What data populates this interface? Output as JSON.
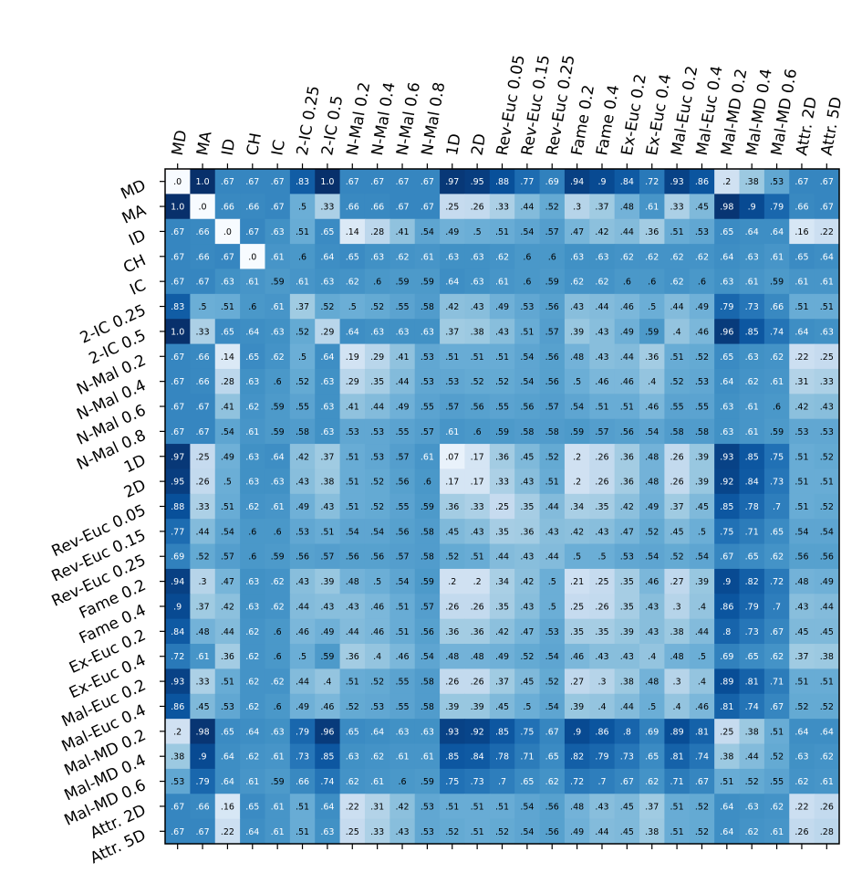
{
  "chart_data": {
    "type": "heatmap",
    "title": "",
    "xlabel": "",
    "ylabel": "",
    "colormap": "Blues",
    "value_range": [
      0,
      1
    ],
    "color_stops": [
      "#f7fbff",
      "#deebf7",
      "#c6dbef",
      "#9ecae1",
      "#6baed6",
      "#4292c6",
      "#2171b5",
      "#08519c",
      "#08306b"
    ],
    "labels": [
      "MD",
      "MA",
      "ID",
      "CH",
      "IC",
      "2-IC 0.25",
      "2-IC 0.5",
      "N-Mal 0.2",
      "N-Mal 0.4",
      "N-Mal 0.6",
      "N-Mal 0.8",
      "1D",
      "2D",
      "Rev-Euc 0.05",
      "Rev-Euc 0.15",
      "Rev-Euc 0.25",
      "Fame 0.2",
      "Fame 0.4",
      "Ex-Euc 0.2",
      "Ex-Euc 0.4",
      "Mal-Euc 0.2",
      "Mal-Euc 0.4",
      "Mal-MD 0.2",
      "Mal-MD 0.4",
      "Mal-MD 0.6",
      "Attr. 2D",
      "Attr. 5D"
    ],
    "values": [
      [
        0.0,
        1.0,
        0.67,
        0.67,
        0.67,
        0.83,
        1.0,
        0.67,
        0.67,
        0.67,
        0.67,
        0.97,
        0.95,
        0.88,
        0.77,
        0.69,
        0.94,
        0.9,
        0.84,
        0.72,
        0.93,
        0.86,
        0.2,
        0.38,
        0.53,
        0.67,
        0.67
      ],
      [
        1.0,
        0.0,
        0.66,
        0.66,
        0.67,
        0.5,
        0.33,
        0.66,
        0.66,
        0.67,
        0.67,
        0.25,
        0.26,
        0.33,
        0.44,
        0.52,
        0.3,
        0.37,
        0.48,
        0.61,
        0.33,
        0.45,
        0.98,
        0.9,
        0.79,
        0.66,
        0.67
      ],
      [
        0.67,
        0.66,
        0.0,
        0.67,
        0.63,
        0.51,
        0.65,
        0.14,
        0.28,
        0.41,
        0.54,
        0.49,
        0.5,
        0.51,
        0.54,
        0.57,
        0.47,
        0.42,
        0.44,
        0.36,
        0.51,
        0.53,
        0.65,
        0.64,
        0.64,
        0.16,
        0.22
      ],
      [
        0.67,
        0.66,
        0.67,
        0.0,
        0.61,
        0.6,
        0.64,
        0.65,
        0.63,
        0.62,
        0.61,
        0.63,
        0.63,
        0.62,
        0.6,
        0.6,
        0.63,
        0.63,
        0.62,
        0.62,
        0.62,
        0.62,
        0.64,
        0.63,
        0.61,
        0.65,
        0.64
      ],
      [
        0.67,
        0.67,
        0.63,
        0.61,
        0.59,
        0.61,
        0.63,
        0.62,
        0.6,
        0.59,
        0.59,
        0.64,
        0.63,
        0.61,
        0.6,
        0.59,
        0.62,
        0.62,
        0.6,
        0.6,
        0.62,
        0.6,
        0.63,
        0.61,
        0.59,
        0.61,
        0.61
      ],
      [
        0.83,
        0.5,
        0.51,
        0.6,
        0.61,
        0.37,
        0.52,
        0.5,
        0.52,
        0.55,
        0.58,
        0.42,
        0.43,
        0.49,
        0.53,
        0.56,
        0.43,
        0.44,
        0.46,
        0.5,
        0.44,
        0.49,
        0.79,
        0.73,
        0.66,
        0.51,
        0.51
      ],
      [
        1.0,
        0.33,
        0.65,
        0.64,
        0.63,
        0.52,
        0.29,
        0.64,
        0.63,
        0.63,
        0.63,
        0.37,
        0.38,
        0.43,
        0.51,
        0.57,
        0.39,
        0.43,
        0.49,
        0.59,
        0.4,
        0.46,
        0.96,
        0.85,
        0.74,
        0.64,
        0.63
      ],
      [
        0.67,
        0.66,
        0.14,
        0.65,
        0.62,
        0.5,
        0.64,
        0.19,
        0.29,
        0.41,
        0.53,
        0.51,
        0.51,
        0.51,
        0.54,
        0.56,
        0.48,
        0.43,
        0.44,
        0.36,
        0.51,
        0.52,
        0.65,
        0.63,
        0.62,
        0.22,
        0.25
      ],
      [
        0.67,
        0.66,
        0.28,
        0.63,
        0.6,
        0.52,
        0.63,
        0.29,
        0.35,
        0.44,
        0.53,
        0.53,
        0.52,
        0.52,
        0.54,
        0.56,
        0.5,
        0.46,
        0.46,
        0.4,
        0.52,
        0.53,
        0.64,
        0.62,
        0.61,
        0.31,
        0.33
      ],
      [
        0.67,
        0.67,
        0.41,
        0.62,
        0.59,
        0.55,
        0.63,
        0.41,
        0.44,
        0.49,
        0.55,
        0.57,
        0.56,
        0.55,
        0.56,
        0.57,
        0.54,
        0.51,
        0.51,
        0.46,
        0.55,
        0.55,
        0.63,
        0.61,
        0.6,
        0.42,
        0.43
      ],
      [
        0.67,
        0.67,
        0.54,
        0.61,
        0.59,
        0.58,
        0.63,
        0.53,
        0.53,
        0.55,
        0.57,
        0.61,
        0.6,
        0.59,
        0.58,
        0.58,
        0.59,
        0.57,
        0.56,
        0.54,
        0.58,
        0.58,
        0.63,
        0.61,
        0.59,
        0.53,
        0.53
      ],
      [
        0.97,
        0.25,
        0.49,
        0.63,
        0.64,
        0.42,
        0.37,
        0.51,
        0.53,
        0.57,
        0.61,
        0.07,
        0.17,
        0.36,
        0.45,
        0.52,
        0.2,
        0.26,
        0.36,
        0.48,
        0.26,
        0.39,
        0.93,
        0.85,
        0.75,
        0.51,
        0.52
      ],
      [
        0.95,
        0.26,
        0.5,
        0.63,
        0.63,
        0.43,
        0.38,
        0.51,
        0.52,
        0.56,
        0.6,
        0.17,
        0.17,
        0.33,
        0.43,
        0.51,
        0.2,
        0.26,
        0.36,
        0.48,
        0.26,
        0.39,
        0.92,
        0.84,
        0.73,
        0.51,
        0.51
      ],
      [
        0.88,
        0.33,
        0.51,
        0.62,
        0.61,
        0.49,
        0.43,
        0.51,
        0.52,
        0.55,
        0.59,
        0.36,
        0.33,
        0.25,
        0.35,
        0.44,
        0.34,
        0.35,
        0.42,
        0.49,
        0.37,
        0.45,
        0.85,
        0.78,
        0.7,
        0.51,
        0.52
      ],
      [
        0.77,
        0.44,
        0.54,
        0.6,
        0.6,
        0.53,
        0.51,
        0.54,
        0.54,
        0.56,
        0.58,
        0.45,
        0.43,
        0.35,
        0.36,
        0.43,
        0.42,
        0.43,
        0.47,
        0.52,
        0.45,
        0.5,
        0.75,
        0.71,
        0.65,
        0.54,
        0.54
      ],
      [
        0.69,
        0.52,
        0.57,
        0.6,
        0.59,
        0.56,
        0.57,
        0.56,
        0.56,
        0.57,
        0.58,
        0.52,
        0.51,
        0.44,
        0.43,
        0.44,
        0.5,
        0.5,
        0.53,
        0.54,
        0.52,
        0.54,
        0.67,
        0.65,
        0.62,
        0.56,
        0.56
      ],
      [
        0.94,
        0.3,
        0.47,
        0.63,
        0.62,
        0.43,
        0.39,
        0.48,
        0.5,
        0.54,
        0.59,
        0.2,
        0.2,
        0.34,
        0.42,
        0.5,
        0.21,
        0.25,
        0.35,
        0.46,
        0.27,
        0.39,
        0.9,
        0.82,
        0.72,
        0.48,
        0.49
      ],
      [
        0.9,
        0.37,
        0.42,
        0.63,
        0.62,
        0.44,
        0.43,
        0.43,
        0.46,
        0.51,
        0.57,
        0.26,
        0.26,
        0.35,
        0.43,
        0.5,
        0.25,
        0.26,
        0.35,
        0.43,
        0.3,
        0.4,
        0.86,
        0.79,
        0.7,
        0.43,
        0.44
      ],
      [
        0.84,
        0.48,
        0.44,
        0.62,
        0.6,
        0.46,
        0.49,
        0.44,
        0.46,
        0.51,
        0.56,
        0.36,
        0.36,
        0.42,
        0.47,
        0.53,
        0.35,
        0.35,
        0.39,
        0.43,
        0.38,
        0.44,
        0.8,
        0.73,
        0.67,
        0.45,
        0.45
      ],
      [
        0.72,
        0.61,
        0.36,
        0.62,
        0.6,
        0.5,
        0.59,
        0.36,
        0.4,
        0.46,
        0.54,
        0.48,
        0.48,
        0.49,
        0.52,
        0.54,
        0.46,
        0.43,
        0.43,
        0.4,
        0.48,
        0.5,
        0.69,
        0.65,
        0.62,
        0.37,
        0.38
      ],
      [
        0.93,
        0.33,
        0.51,
        0.62,
        0.62,
        0.44,
        0.4,
        0.51,
        0.52,
        0.55,
        0.58,
        0.26,
        0.26,
        0.37,
        0.45,
        0.52,
        0.27,
        0.3,
        0.38,
        0.48,
        0.3,
        0.4,
        0.89,
        0.81,
        0.71,
        0.51,
        0.51
      ],
      [
        0.86,
        0.45,
        0.53,
        0.62,
        0.6,
        0.49,
        0.46,
        0.52,
        0.53,
        0.55,
        0.58,
        0.39,
        0.39,
        0.45,
        0.5,
        0.54,
        0.39,
        0.4,
        0.44,
        0.5,
        0.4,
        0.46,
        0.81,
        0.74,
        0.67,
        0.52,
        0.52
      ],
      [
        0.2,
        0.98,
        0.65,
        0.64,
        0.63,
        0.79,
        0.96,
        0.65,
        0.64,
        0.63,
        0.63,
        0.93,
        0.92,
        0.85,
        0.75,
        0.67,
        0.9,
        0.86,
        0.8,
        0.69,
        0.89,
        0.81,
        0.25,
        0.38,
        0.51,
        0.64,
        0.64
      ],
      [
        0.38,
        0.9,
        0.64,
        0.62,
        0.61,
        0.73,
        0.85,
        0.63,
        0.62,
        0.61,
        0.61,
        0.85,
        0.84,
        0.78,
        0.71,
        0.65,
        0.82,
        0.79,
        0.73,
        0.65,
        0.81,
        0.74,
        0.38,
        0.44,
        0.52,
        0.63,
        0.62
      ],
      [
        0.53,
        0.79,
        0.64,
        0.61,
        0.59,
        0.66,
        0.74,
        0.62,
        0.61,
        0.6,
        0.59,
        0.75,
        0.73,
        0.7,
        0.65,
        0.62,
        0.72,
        0.7,
        0.67,
        0.62,
        0.71,
        0.67,
        0.51,
        0.52,
        0.55,
        0.62,
        0.61
      ],
      [
        0.67,
        0.66,
        0.16,
        0.65,
        0.61,
        0.51,
        0.64,
        0.22,
        0.31,
        0.42,
        0.53,
        0.51,
        0.51,
        0.51,
        0.54,
        0.56,
        0.48,
        0.43,
        0.45,
        0.37,
        0.51,
        0.52,
        0.64,
        0.63,
        0.62,
        0.22,
        0.26
      ],
      [
        0.67,
        0.67,
        0.22,
        0.64,
        0.61,
        0.51,
        0.63,
        0.25,
        0.33,
        0.43,
        0.53,
        0.52,
        0.51,
        0.52,
        0.54,
        0.56,
        0.49,
        0.44,
        0.45,
        0.38,
        0.51,
        0.52,
        0.64,
        0.62,
        0.61,
        0.26,
        0.28
      ]
    ]
  }
}
